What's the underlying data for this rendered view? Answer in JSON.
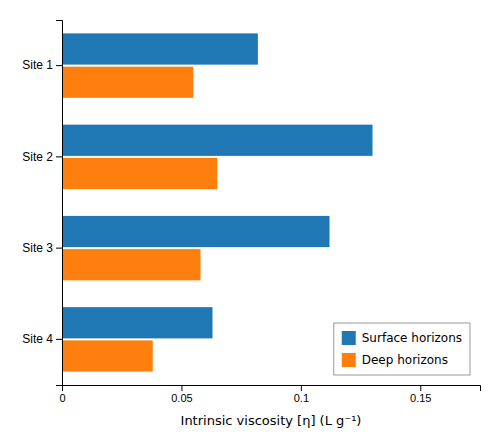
{
  "chart_data": {
    "type": "bar",
    "orientation": "horizontal",
    "categories": [
      "Site 1",
      "Site 2",
      "Site 3",
      "Site 4"
    ],
    "series": [
      {
        "name": "Surface horizons",
        "values": [
          0.082,
          0.13,
          0.112,
          0.063
        ]
      },
      {
        "name": "Deep horizons",
        "values": [
          0.055,
          0.065,
          0.058,
          0.038
        ]
      }
    ],
    "xlabel": "Intrinsic viscosity [η] (L g⁻¹)",
    "xlim": [
      0,
      0.175
    ],
    "xticks": [
      0,
      0.05,
      0.1,
      0.15
    ],
    "grid": false,
    "legend": "lower right"
  }
}
